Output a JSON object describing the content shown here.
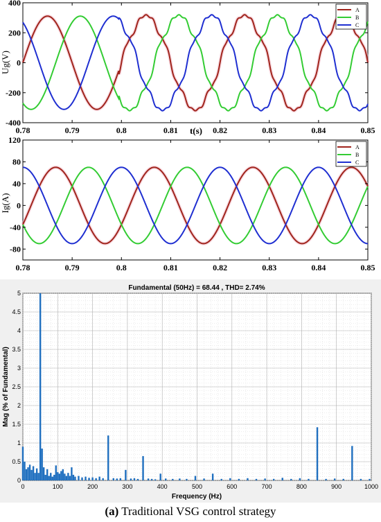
{
  "chart_data": [
    {
      "type": "line",
      "ylabel": "Ug(V)",
      "xlabel": "t(s)",
      "xlim": [
        0.78,
        0.85
      ],
      "ylim": [
        -400,
        400
      ],
      "xticks": [
        "0.78",
        "0.79",
        "0.8",
        "0.81",
        "0.82",
        "0.83",
        "0.84",
        "0.85"
      ],
      "yticks": [
        "400",
        "200",
        "0",
        "-200",
        "-400"
      ],
      "grid": false,
      "legend": "top-right",
      "frequency_hz": 50,
      "series": [
        {
          "name": "A",
          "color": "#a0241c",
          "amplitude_before": 311,
          "amplitude_after": 311,
          "phase_deg": 0
        },
        {
          "name": "B",
          "color": "#33cc33",
          "amplitude_before": 311,
          "amplitude_after": 311,
          "phase_deg": -120
        },
        {
          "name": "C",
          "color": "#1f2fd1",
          "amplitude_before": 311,
          "amplitude_after": 311,
          "phase_deg": 120
        }
      ],
      "distortion_from_t": 0.7995,
      "distortion_harmonics": [
        [
          5,
          0.05
        ],
        [
          7,
          0.045
        ],
        [
          13,
          0.025
        ]
      ]
    },
    {
      "type": "line",
      "ylabel": "Ig(A)",
      "xlabel": "",
      "xlim": [
        0.78,
        0.85
      ],
      "ylim": [
        -100,
        120
      ],
      "xticks": [
        "0.78",
        "0.79",
        "0.8",
        "0.81",
        "0.82",
        "0.83",
        "0.84",
        "0.85"
      ],
      "yticks": [
        "120",
        "80",
        "40",
        "0",
        "-40",
        "-80"
      ],
      "grid": false,
      "legend": "top-right",
      "frequency_hz": 50,
      "series": [
        {
          "name": "A",
          "color": "#a0241c",
          "amplitude": 70,
          "phase_deg": -30
        },
        {
          "name": "B",
          "color": "#33cc33",
          "amplitude": 70,
          "phase_deg": -150
        },
        {
          "name": "C",
          "color": "#1f2fd1",
          "amplitude": 70,
          "phase_deg": 90
        }
      ]
    },
    {
      "type": "bar",
      "title": "Fundamental (50Hz) = 68.44 , THD= 2.74%",
      "xlabel": "Frequency (Hz)",
      "ylabel": "Mag (% of Fundamental)",
      "xlim": [
        0,
        1000
      ],
      "ylim": [
        0,
        5
      ],
      "xticks": [
        "0",
        "100",
        "200",
        "300",
        "400",
        "500",
        "600",
        "700",
        "800",
        "900",
        "1000"
      ],
      "yticks": [
        "0",
        "0.5",
        "1",
        "1.5",
        "2",
        "2.5",
        "3",
        "3.5",
        "4",
        "4.5",
        "5"
      ],
      "grid": true,
      "bars": [
        [
          0,
          0.9
        ],
        [
          5,
          0.5
        ],
        [
          10,
          0.3
        ],
        [
          15,
          0.35
        ],
        [
          20,
          0.42
        ],
        [
          25,
          0.28
        ],
        [
          30,
          0.38
        ],
        [
          35,
          0.2
        ],
        [
          40,
          0.32
        ],
        [
          45,
          0.2
        ],
        [
          50,
          5.0
        ],
        [
          55,
          0.85
        ],
        [
          60,
          0.35
        ],
        [
          65,
          0.15
        ],
        [
          70,
          0.3
        ],
        [
          75,
          0.12
        ],
        [
          80,
          0.2
        ],
        [
          85,
          0.1
        ],
        [
          90,
          0.15
        ],
        [
          95,
          0.4
        ],
        [
          100,
          0.22
        ],
        [
          105,
          0.18
        ],
        [
          110,
          0.25
        ],
        [
          115,
          0.3
        ],
        [
          120,
          0.18
        ],
        [
          125,
          0.12
        ],
        [
          130,
          0.2
        ],
        [
          135,
          0.12
        ],
        [
          140,
          0.35
        ],
        [
          145,
          0.15
        ],
        [
          150,
          0.1
        ],
        [
          160,
          0.12
        ],
        [
          170,
          0.08
        ],
        [
          180,
          0.1
        ],
        [
          190,
          0.07
        ],
        [
          200,
          0.08
        ],
        [
          210,
          0.06
        ],
        [
          220,
          0.1
        ],
        [
          230,
          0.06
        ],
        [
          245,
          1.2
        ],
        [
          260,
          0.06
        ],
        [
          270,
          0.05
        ],
        [
          280,
          0.06
        ],
        [
          295,
          0.28
        ],
        [
          310,
          0.05
        ],
        [
          320,
          0.06
        ],
        [
          330,
          0.04
        ],
        [
          345,
          0.65
        ],
        [
          360,
          0.05
        ],
        [
          370,
          0.04
        ],
        [
          380,
          0.03
        ],
        [
          395,
          0.18
        ],
        [
          410,
          0.05
        ],
        [
          430,
          0.04
        ],
        [
          450,
          0.05
        ],
        [
          470,
          0.04
        ],
        [
          495,
          0.12
        ],
        [
          520,
          0.05
        ],
        [
          545,
          0.18
        ],
        [
          570,
          0.04
        ],
        [
          595,
          0.06
        ],
        [
          620,
          0.04
        ],
        [
          645,
          0.06
        ],
        [
          670,
          0.04
        ],
        [
          695,
          0.05
        ],
        [
          720,
          0.04
        ],
        [
          745,
          0.07
        ],
        [
          770,
          0.04
        ],
        [
          795,
          0.06
        ],
        [
          820,
          0.04
        ],
        [
          845,
          1.42
        ],
        [
          870,
          0.04
        ],
        [
          895,
          0.05
        ],
        [
          920,
          0.04
        ],
        [
          945,
          0.92
        ],
        [
          970,
          0.04
        ],
        [
          995,
          0.04
        ]
      ]
    }
  ],
  "caption": {
    "label": "(a)",
    "text": "Traditional VSG control strategy"
  }
}
